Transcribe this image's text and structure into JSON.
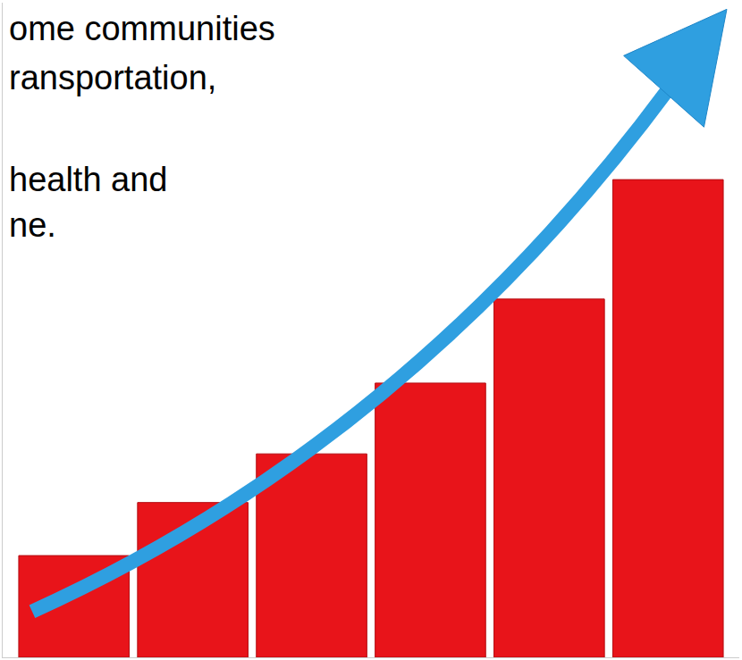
{
  "chart_data": {
    "type": "bar",
    "categories": [
      null,
      null,
      null,
      null,
      null,
      null
    ],
    "values": [
      115,
      175,
      230,
      310,
      405,
      540
    ],
    "color": "#e8141a",
    "ylim": [
      0,
      740
    ],
    "tick_labels": false,
    "annotations": [
      "ome communities",
      "ransportation,",
      "health and",
      "ne."
    ]
  }
}
